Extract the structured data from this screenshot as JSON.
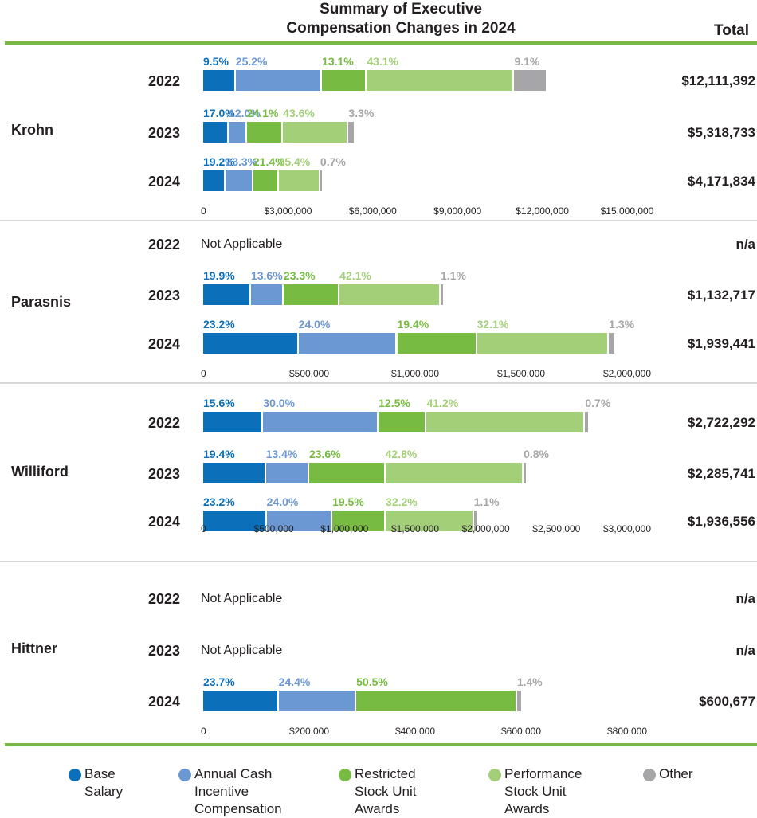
{
  "title_line1": "Summary of Executive",
  "title_line2": "Compensation Changes in 2024",
  "total_header": "Total",
  "colors": {
    "base": "#0b6fba",
    "cash": "#6b97d2",
    "rsu": "#78bb43",
    "psu": "#a3cf78",
    "other": "#a6a6a8"
  },
  "legend": [
    {
      "key": "base",
      "line1": "Base",
      "line2": "Salary",
      "line3": ""
    },
    {
      "key": "cash",
      "line1": "Annual Cash",
      "line2": "Incentive",
      "line3": "Compensation"
    },
    {
      "key": "rsu",
      "line1": "Restricted",
      "line2": "Stock Unit",
      "line3": "Awards"
    },
    {
      "key": "psu",
      "line1": "Performance",
      "line2": "Stock Unit",
      "line3": "Awards"
    },
    {
      "key": "other",
      "line1": "Other",
      "line2": "",
      "line3": ""
    }
  ],
  "chart_data": [
    {
      "type": "bar",
      "orientation": "horizontal-stacked",
      "executive": "Krohn",
      "xlim": [
        0,
        15000000
      ],
      "ticks": [
        "0",
        "$3,000,000",
        "$6,000,000",
        "$9,000,000",
        "$12,000,000",
        "$15,000,000"
      ],
      "tick_values": [
        0,
        3000000,
        6000000,
        9000000,
        12000000,
        15000000
      ],
      "rows": [
        {
          "year": "2022",
          "total": "$12,111,392",
          "total_value": 12111392,
          "applicable": true,
          "labels": [
            "9.5%",
            "25.2%",
            "13.1%",
            "43.1%",
            "9.1%"
          ],
          "shares": [
            9.5,
            25.2,
            13.1,
            43.1,
            9.1
          ]
        },
        {
          "year": "2023",
          "total": "$5,318,733",
          "total_value": 5318733,
          "applicable": true,
          "labels": [
            "17.0%",
            "12.0%",
            "24.1%",
            "43.6%",
            "3.3%"
          ],
          "shares": [
            17.0,
            12.0,
            24.1,
            43.6,
            3.3
          ]
        },
        {
          "year": "2024",
          "total": "$4,171,834",
          "total_value": 4171834,
          "applicable": true,
          "labels": [
            "19.2%",
            "23.3%",
            "21.4%",
            "35.4%",
            "0.7%"
          ],
          "shares": [
            19.2,
            23.3,
            21.4,
            35.4,
            0.7
          ]
        }
      ]
    },
    {
      "type": "bar",
      "orientation": "horizontal-stacked",
      "executive": "Parasnis",
      "xlim": [
        0,
        2000000
      ],
      "ticks": [
        "0",
        "$500,000",
        "$1,000,000",
        "$1,500,000",
        "$2,000,000"
      ],
      "tick_values": [
        0,
        500000,
        1000000,
        1500000,
        2000000
      ],
      "rows": [
        {
          "year": "2022",
          "total": "n/a",
          "total_value": 0,
          "applicable": false,
          "na_text": "Not Applicable",
          "labels": [],
          "shares": []
        },
        {
          "year": "2023",
          "total": "$1,132,717",
          "total_value": 1132717,
          "applicable": true,
          "labels": [
            "19.9%",
            "13.6%",
            "23.3%",
            "42.1%",
            "1.1%"
          ],
          "shares": [
            19.9,
            13.6,
            23.3,
            42.1,
            1.1
          ]
        },
        {
          "year": "2024",
          "total": "$1,939,441",
          "total_value": 1939441,
          "applicable": true,
          "labels": [
            "23.2%",
            "24.0%",
            "19.4%",
            "32.1%",
            "1.3%"
          ],
          "shares": [
            23.2,
            24.0,
            19.4,
            32.1,
            1.3
          ]
        }
      ]
    },
    {
      "type": "bar",
      "orientation": "horizontal-stacked",
      "executive": "Williford",
      "xlim": [
        0,
        3000000
      ],
      "ticks": [
        "0",
        "$500,000",
        "$1,000,000",
        "$1,500,000",
        "$2,000,000",
        "$2,500,000",
        "$3,000,000"
      ],
      "tick_values": [
        0,
        500000,
        1000000,
        1500000,
        2000000,
        2500000,
        3000000
      ],
      "rows": [
        {
          "year": "2022",
          "total": "$2,722,292",
          "total_value": 2722292,
          "applicable": true,
          "labels": [
            "15.6%",
            "30.0%",
            "12.5%",
            "41.2%",
            "0.7%"
          ],
          "shares": [
            15.6,
            30.0,
            12.5,
            41.2,
            0.7
          ]
        },
        {
          "year": "2023",
          "total": "$2,285,741",
          "total_value": 2285741,
          "applicable": true,
          "labels": [
            "19.4%",
            "13.4%",
            "23.6%",
            "42.8%",
            "0.8%"
          ],
          "shares": [
            19.4,
            13.4,
            23.6,
            42.8,
            0.8
          ]
        },
        {
          "year": "2024",
          "total": "$1,936,556",
          "total_value": 1936556,
          "applicable": true,
          "labels": [
            "23.2%",
            "24.0%",
            "19.5%",
            "32.2%",
            "1.1%"
          ],
          "shares": [
            23.2,
            24.0,
            19.5,
            32.2,
            1.1
          ]
        }
      ]
    },
    {
      "type": "bar",
      "orientation": "horizontal-stacked",
      "executive": "Hittner",
      "xlim": [
        0,
        800000
      ],
      "ticks": [
        "0",
        "$200,000",
        "$400,000",
        "$600,000",
        "$800,000"
      ],
      "tick_values": [
        0,
        200000,
        400000,
        600000,
        800000
      ],
      "rows": [
        {
          "year": "2022",
          "total": "n/a",
          "total_value": 0,
          "applicable": false,
          "na_text": "Not Applicable",
          "labels": [],
          "shares": []
        },
        {
          "year": "2023",
          "total": "n/a",
          "total_value": 0,
          "applicable": false,
          "na_text": "Not Applicable",
          "labels": [],
          "shares": []
        },
        {
          "year": "2024",
          "total": "$600,677",
          "total_value": 600677,
          "applicable": true,
          "labels": [
            "23.7%",
            "24.4%",
            "",
            "50.5%",
            "1.4%"
          ],
          "shares": [
            23.7,
            24.4,
            0,
            50.5,
            1.4
          ],
          "segment_keys": [
            "base",
            "cash",
            "psu",
            "rsu",
            "other"
          ]
        }
      ]
    }
  ]
}
